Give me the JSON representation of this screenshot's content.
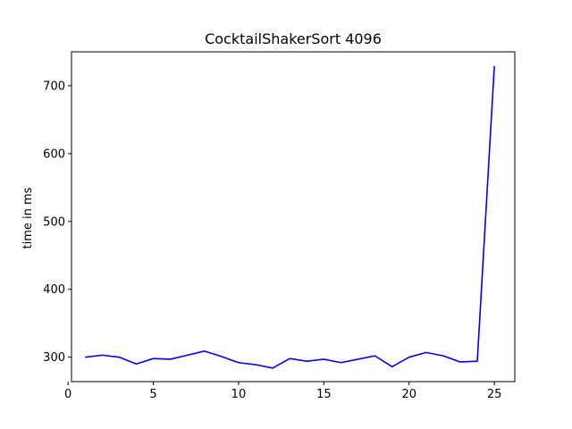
{
  "chart_data": {
    "type": "line",
    "title": "CocktailShakerSort 4096",
    "xlabel": "",
    "ylabel": "time in ms",
    "xlim": [
      0.2,
      26.2
    ],
    "ylim": [
      264,
      750
    ],
    "xticks": [
      0,
      5,
      10,
      15,
      20,
      25
    ],
    "yticks": [
      300,
      400,
      500,
      600,
      700
    ],
    "grid": false,
    "series": [
      {
        "color": "#0000ff",
        "x": [
          1,
          2,
          3,
          4,
          5,
          6,
          7,
          8,
          9,
          10,
          11,
          12,
          13,
          14,
          15,
          16,
          17,
          18,
          19,
          20,
          21,
          22,
          23,
          24,
          25
        ],
        "values": [
          300,
          303,
          300,
          290,
          298,
          297,
          303,
          309,
          301,
          292,
          289,
          284,
          298,
          294,
          297,
          292,
          297,
          302,
          286,
          300,
          307,
          302,
          293,
          294,
          729
        ]
      }
    ]
  }
}
